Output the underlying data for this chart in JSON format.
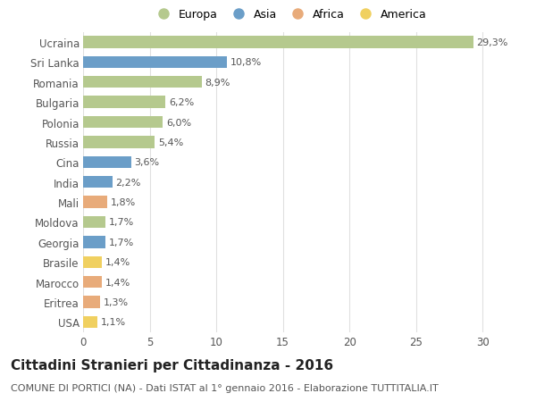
{
  "categories": [
    "Ucraina",
    "Sri Lanka",
    "Romania",
    "Bulgaria",
    "Polonia",
    "Russia",
    "Cina",
    "India",
    "Mali",
    "Moldova",
    "Georgia",
    "Brasile",
    "Marocco",
    "Eritrea",
    "USA"
  ],
  "values": [
    29.3,
    10.8,
    8.9,
    6.2,
    6.0,
    5.4,
    3.6,
    2.2,
    1.8,
    1.7,
    1.7,
    1.4,
    1.4,
    1.3,
    1.1
  ],
  "labels": [
    "29,3%",
    "10,8%",
    "8,9%",
    "6,2%",
    "6,0%",
    "5,4%",
    "3,6%",
    "2,2%",
    "1,8%",
    "1,7%",
    "1,7%",
    "1,4%",
    "1,4%",
    "1,3%",
    "1,1%"
  ],
  "continents": [
    "Europa",
    "Asia",
    "Europa",
    "Europa",
    "Europa",
    "Europa",
    "Asia",
    "Asia",
    "Africa",
    "Europa",
    "Asia",
    "America",
    "Africa",
    "Africa",
    "America"
  ],
  "colors": {
    "Europa": "#b5c98e",
    "Asia": "#6b9ec8",
    "Africa": "#e8ab7a",
    "America": "#f0d060"
  },
  "legend_order": [
    "Europa",
    "Asia",
    "Africa",
    "America"
  ],
  "title": "Cittadini Stranieri per Cittadinanza - 2016",
  "subtitle": "COMUNE DI PORTICI (NA) - Dati ISTAT al 1° gennaio 2016 - Elaborazione TUTTITALIA.IT",
  "xlim": [
    0,
    31
  ],
  "xticks": [
    0,
    5,
    10,
    15,
    20,
    25,
    30
  ],
  "background_color": "#ffffff",
  "grid_color": "#e0e0e0",
  "bar_height": 0.6,
  "label_fontsize": 8,
  "tick_fontsize": 8.5,
  "legend_fontsize": 9,
  "title_fontsize": 11,
  "subtitle_fontsize": 8
}
